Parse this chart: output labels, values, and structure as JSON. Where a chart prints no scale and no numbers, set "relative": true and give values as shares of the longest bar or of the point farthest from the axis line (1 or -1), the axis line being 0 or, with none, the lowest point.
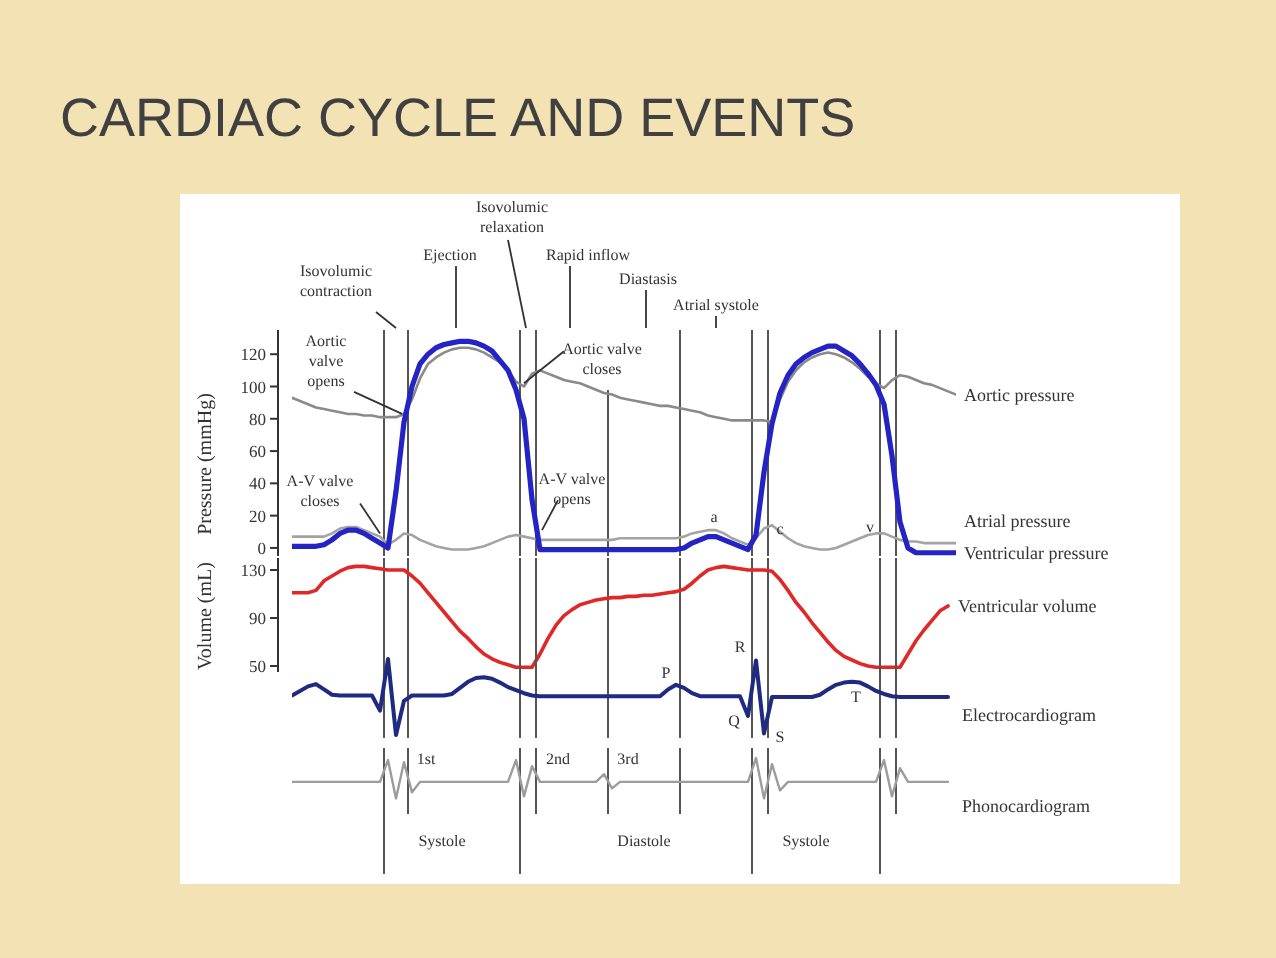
{
  "chart_data": [
    {
      "type": "line",
      "title": "CARDIAC CYCLE AND EVENTS",
      "ylabel": "Pressure (mmHg)",
      "grid": "x",
      "categories": [
        null,
        null,
        null,
        null,
        null,
        null,
        null,
        null,
        null,
        null,
        null,
        null,
        null,
        null,
        null,
        null,
        null,
        null,
        null,
        null,
        null,
        null,
        null,
        null,
        null,
        null,
        null,
        null,
        null,
        null,
        null,
        null,
        null,
        null,
        null,
        null,
        null,
        null,
        null,
        null,
        null,
        null,
        null,
        null,
        null,
        null,
        null,
        null,
        null,
        null,
        null,
        null,
        null,
        null,
        null,
        null,
        null,
        null,
        null,
        null,
        null,
        null,
        null,
        null,
        null,
        null,
        null,
        null,
        null,
        null,
        null,
        null,
        null,
        null,
        null,
        null,
        null,
        null,
        null,
        null,
        null,
        null,
        null,
        null
      ],
      "ylim": [
        -5,
        135
      ],
      "yticks": [
        0,
        20,
        40,
        60,
        80,
        100,
        120
      ],
      "series": [
        {
          "name": "Aortic pressure",
          "color": "#8a8a8a",
          "values": [
            93,
            91,
            89,
            87,
            86,
            85,
            84,
            83,
            83,
            82,
            82,
            81,
            81,
            81,
            83,
            92,
            105,
            114,
            118,
            121,
            123,
            124,
            124,
            123,
            121,
            118,
            115,
            110,
            103,
            100,
            108,
            110,
            108,
            106,
            104,
            103,
            102,
            100,
            98,
            96,
            95,
            93,
            92,
            91,
            90,
            89,
            88,
            88,
            87,
            86,
            85,
            84,
            82,
            81,
            80,
            79,
            79,
            79,
            79,
            79,
            78,
            92,
            103,
            110,
            115,
            118,
            120,
            121,
            120,
            118,
            115,
            111,
            106,
            102,
            99,
            104,
            107,
            106,
            104,
            102,
            101,
            99,
            97,
            95
          ]
        },
        {
          "name": "Atrial pressure",
          "color": "#a3a3a3",
          "values": [
            7,
            7,
            7,
            7,
            7,
            9,
            12,
            13,
            13,
            11,
            9,
            7,
            2,
            5,
            9,
            8,
            5,
            3,
            1,
            0,
            -1,
            -1,
            -1,
            0,
            1,
            3,
            5,
            7,
            8,
            7,
            6,
            5,
            5,
            5,
            5,
            5,
            5,
            5,
            5,
            5,
            5,
            6,
            6,
            6,
            6,
            6,
            6,
            6,
            6,
            7,
            9,
            10,
            11,
            11,
            9,
            6,
            4,
            2,
            6,
            12,
            14,
            10,
            6,
            3,
            1,
            0,
            -1,
            -1,
            0,
            2,
            4,
            6,
            8,
            9,
            9,
            7,
            5,
            4,
            4,
            3,
            3,
            3,
            3,
            3
          ]
        },
        {
          "name": "Ventricular pressure",
          "color": "#2424c4",
          "values": [
            1,
            1,
            1,
            1,
            2,
            5,
            9,
            11,
            11,
            9,
            6,
            3,
            0,
            35,
            78,
            100,
            114,
            120,
            124,
            126,
            127,
            128,
            128,
            127,
            125,
            122,
            116,
            110,
            98,
            80,
            30,
            -1,
            -1,
            -1,
            -1,
            -1,
            -1,
            -1,
            -1,
            -1,
            -1,
            -1,
            -1,
            -1,
            -1,
            -1,
            -1,
            -1,
            -1,
            0,
            3,
            5,
            7,
            7,
            5,
            3,
            1,
            -1,
            8,
            47,
            77,
            96,
            107,
            114,
            118,
            121,
            123,
            125,
            125,
            122,
            119,
            114,
            108,
            101,
            89,
            57,
            16,
            0,
            -3,
            -3,
            -3,
            -3,
            -3,
            -3
          ]
        }
      ],
      "annotations": [
        "Isovolumic contraction",
        "Ejection",
        "Isovolumic relaxation",
        "Rapid inflow",
        "Diastasis",
        "Atrial systole",
        {
          "text": "Aortic valve opens",
          "y": 83
        },
        {
          "text": "A-V valve closes",
          "y": 9
        },
        {
          "text": "Aortic valve closes",
          "y": 102
        },
        {
          "text": "A-V valve opens",
          "y": 11
        },
        {
          "text": "a",
          "y": 11
        },
        {
          "text": "c",
          "y": 14
        },
        {
          "text": "v",
          "y": 9
        }
      ]
    },
    {
      "type": "line",
      "ylabel": "Volume (mL)",
      "grid": "x",
      "categories": [
        null,
        null,
        null,
        null,
        null,
        null,
        null,
        null,
        null,
        null,
        null,
        null,
        null,
        null,
        null,
        null,
        null,
        null,
        null,
        null,
        null,
        null,
        null,
        null,
        null,
        null,
        null,
        null,
        null,
        null,
        null,
        null,
        null,
        null,
        null,
        null,
        null,
        null,
        null,
        null,
        null,
        null,
        null,
        null,
        null,
        null,
        null,
        null,
        null,
        null,
        null,
        null,
        null,
        null,
        null,
        null,
        null,
        null,
        null,
        null,
        null,
        null,
        null,
        null,
        null,
        null,
        null,
        null,
        null,
        null,
        null,
        null,
        null,
        null,
        null,
        null,
        null,
        null,
        null,
        null,
        null,
        null,
        null,
        null
      ],
      "ylim": [
        45,
        140
      ],
      "yticks": [
        50,
        90,
        130
      ],
      "series": [
        {
          "name": "Ventricular volume",
          "color": "#e02828",
          "values": [
            111,
            111,
            111,
            113,
            121,
            125,
            129,
            132,
            133,
            133,
            132,
            131,
            130,
            130,
            130,
            125,
            119,
            111,
            103,
            95,
            87,
            79,
            73,
            66,
            60,
            56,
            53,
            51,
            49,
            49,
            49,
            60,
            73,
            84,
            92,
            97,
            101,
            103,
            105,
            106,
            107,
            107,
            108,
            108,
            109,
            109,
            110,
            111,
            112,
            114,
            119,
            125,
            130,
            132,
            133,
            132,
            131,
            130,
            130,
            130,
            129,
            122,
            113,
            103,
            95,
            86,
            78,
            70,
            63,
            58,
            55,
            52,
            50,
            49,
            49,
            49,
            49,
            60,
            71,
            80,
            88,
            96,
            100,
            null
          ]
        }
      ]
    },
    {
      "type": "line",
      "relative": true,
      "grid": "x",
      "categories": [
        null,
        null,
        null,
        null,
        null,
        null,
        null,
        null,
        null,
        null,
        null,
        null,
        null,
        null,
        null,
        null,
        null,
        null,
        null,
        null,
        null,
        null,
        null,
        null,
        null,
        null,
        null,
        null,
        null,
        null,
        null,
        null,
        null,
        null,
        null,
        null,
        null,
        null,
        null,
        null,
        null,
        null,
        null,
        null,
        null,
        null,
        null,
        null,
        null,
        null,
        null,
        null,
        null,
        null,
        null,
        null,
        null,
        null,
        null,
        null,
        null,
        null,
        null,
        null,
        null,
        null,
        null,
        null,
        null,
        null,
        null,
        null,
        null,
        null,
        null,
        null,
        null,
        null,
        null,
        null,
        null,
        null,
        null,
        null
      ],
      "series": [
        {
          "name": "Electrocardiogram",
          "color": "#1f2a80",
          "values": [
            0.52,
            0.58,
            0.64,
            0.67,
            0.6,
            0.53,
            0.52,
            0.52,
            0.52,
            0.52,
            0.52,
            0.32,
            1,
            0,
            0.45,
            0.52,
            0.52,
            0.52,
            0.52,
            0.52,
            0.54,
            0.62,
            0.7,
            0.75,
            0.76,
            0.74,
            0.69,
            0.63,
            0.59,
            0.55,
            0.52,
            0.51,
            0.51,
            0.51,
            0.51,
            0.51,
            0.51,
            0.51,
            0.51,
            0.51,
            0.51,
            0.51,
            0.51,
            0.51,
            0.51,
            0.51,
            0.51,
            0.6,
            0.66,
            0.62,
            0.55,
            0.51,
            0.51,
            0.51,
            0.51,
            0.51,
            0.51,
            0.25,
            0.98,
            0.02,
            0.5,
            0.5,
            0.5,
            0.5,
            0.5,
            0.5,
            0.53,
            0.6,
            0.66,
            0.69,
            0.7,
            0.69,
            0.64,
            0.58,
            0.54,
            0.51,
            0.5,
            0.5,
            0.5,
            0.5,
            0.5,
            0.5,
            0.5,
            null
          ]
        }
      ],
      "annotations": [
        "P",
        "Q",
        "R",
        "S",
        "T"
      ]
    },
    {
      "type": "line",
      "relative": true,
      "grid": "x",
      "categories": [
        null,
        null,
        null,
        null,
        null,
        null,
        null,
        null,
        null,
        null,
        null,
        null,
        null,
        null,
        null,
        null,
        null,
        null,
        null,
        null,
        null,
        null,
        null,
        null,
        null,
        null,
        null,
        null,
        null,
        null,
        null,
        null,
        null,
        null,
        null,
        null,
        null,
        null,
        null,
        null,
        null,
        null,
        null,
        null,
        null,
        null,
        null,
        null,
        null,
        null,
        null,
        null,
        null,
        null,
        null,
        null,
        null,
        null,
        null,
        null,
        null,
        null,
        null,
        null,
        null,
        null,
        null,
        null,
        null,
        null,
        null,
        null,
        null,
        null,
        null,
        null,
        null,
        null,
        null,
        null,
        null,
        null,
        null,
        null
      ],
      "series": [
        {
          "name": "Phonocardiogram",
          "color": "#9c9c9c",
          "values": [
            0.41,
            0.41,
            0.41,
            0.41,
            0.41,
            0.41,
            0.41,
            0.41,
            0.41,
            0.41,
            0.41,
            0.41,
            0.95,
            0,
            0.9,
            0.15,
            0.41,
            0.41,
            0.41,
            0.41,
            0.41,
            0.41,
            0.41,
            0.41,
            0.41,
            0.41,
            0.41,
            0.41,
            0.95,
            0.05,
            0.8,
            0.41,
            0.41,
            0.41,
            0.41,
            0.41,
            0.41,
            0.41,
            0.41,
            0.6,
            0.25,
            0.41,
            0.41,
            0.41,
            0.41,
            0.41,
            0.41,
            0.41,
            0.41,
            0.41,
            0.41,
            0.41,
            0.41,
            0.41,
            0.41,
            0.41,
            0.41,
            0.41,
            1,
            0,
            0.85,
            0.2,
            0.41,
            0.41,
            0.41,
            0.41,
            0.41,
            0.41,
            0.41,
            0.41,
            0.41,
            0.41,
            0.41,
            0.41,
            0.95,
            0.05,
            0.75,
            0.41,
            0.41,
            0.41,
            0.41,
            0.41,
            0.41,
            null
          ]
        }
      ],
      "annotations": [
        "1st",
        "2nd",
        "3rd",
        "Systole",
        "Diastole",
        "Systole"
      ]
    }
  ]
}
